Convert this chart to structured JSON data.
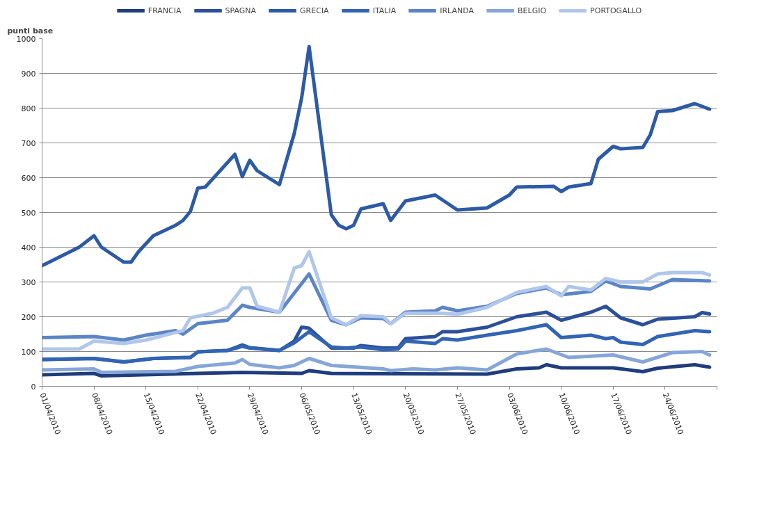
{
  "chart_data": {
    "type": "line",
    "ylabel": "punti base",
    "xlim": [
      "2010-04-01",
      "2010-07-01"
    ],
    "xticks": [
      {
        "value": "2010-04-01",
        "label": "01/04/2010"
      },
      {
        "value": "2010-04-08",
        "label": "08/04/2010"
      },
      {
        "value": "2010-04-15",
        "label": "15/04/2010"
      },
      {
        "value": "2010-04-22",
        "label": "22/04/2010"
      },
      {
        "value": "2010-04-29",
        "label": "29/04/2010"
      },
      {
        "value": "2010-05-06",
        "label": "06/05/2010"
      },
      {
        "value": "2010-05-13",
        "label": "13/05/2010"
      },
      {
        "value": "2010-05-20",
        "label": "20/05/2010"
      },
      {
        "value": "2010-05-27",
        "label": "27/05/2010"
      },
      {
        "value": "2010-06-03",
        "label": "03/06/2010"
      },
      {
        "value": "2010-06-10",
        "label": "10/06/2010"
      },
      {
        "value": "2010-06-17",
        "label": "17/06/2010"
      },
      {
        "value": "2010-06-24",
        "label": "24/06/2010"
      },
      {
        "value": "2010-07-01",
        "label": null
      }
    ],
    "ylim": [
      0,
      1000
    ],
    "yticks": [
      0,
      100,
      200,
      300,
      400,
      500,
      600,
      700,
      800,
      900,
      1000
    ],
    "grid": "y",
    "legend": "top",
    "marker": "none",
    "line_style": "solid",
    "series": [
      {
        "name": "FRANCIA",
        "color": "#1f3c7c",
        "x": [
          "2010-04-01",
          "2010-04-08",
          "2010-04-09",
          "2010-04-22",
          "2010-04-28",
          "2010-05-06",
          "2010-05-07",
          "2010-05-10",
          "2010-05-31",
          "2010-06-04",
          "2010-06-07",
          "2010-06-08",
          "2010-06-10",
          "2010-06-17",
          "2010-06-21",
          "2010-06-23",
          "2010-06-28",
          "2010-06-30"
        ],
        "values": [
          33,
          37,
          30,
          37,
          40,
          37,
          45,
          37,
          35,
          50,
          53,
          62,
          53,
          53,
          42,
          52,
          62,
          55
        ]
      },
      {
        "name": "SPAGNA",
        "color": "#2c4f9a",
        "x": [
          "2010-04-01",
          "2010-04-08",
          "2010-04-12",
          "2010-04-16",
          "2010-04-21",
          "2010-04-22",
          "2010-04-26",
          "2010-04-28",
          "2010-04-29",
          "2010-05-03",
          "2010-05-05",
          "2010-05-06",
          "2010-05-07",
          "2010-05-10",
          "2010-05-13",
          "2010-05-14",
          "2010-05-17",
          "2010-05-19",
          "2010-05-20",
          "2010-05-24",
          "2010-05-25",
          "2010-05-27",
          "2010-05-31",
          "2010-06-04",
          "2010-06-08",
          "2010-06-10",
          "2010-06-14",
          "2010-06-16",
          "2010-06-18",
          "2010-06-21",
          "2010-06-23",
          "2010-06-28",
          "2010-06-29",
          "2010-06-30"
        ],
        "values": [
          77,
          80,
          70,
          80,
          83,
          99,
          103,
          119,
          111,
          103,
          130,
          170,
          167,
          110,
          110,
          117,
          110,
          110,
          137,
          143,
          157,
          157,
          170,
          200,
          213,
          190,
          213,
          230,
          197,
          177,
          193,
          200,
          212,
          208
        ]
      },
      {
        "name": "GRECIA",
        "color": "#2d5aa5",
        "x": [
          "2010-04-01",
          "2010-04-06",
          "2010-04-08",
          "2010-04-09",
          "2010-04-12",
          "2010-04-13",
          "2010-04-14",
          "2010-04-16",
          "2010-04-19",
          "2010-04-20",
          "2010-04-21",
          "2010-04-22",
          "2010-04-23",
          "2010-04-27",
          "2010-04-28",
          "2010-04-29",
          "2010-04-30",
          "2010-05-03",
          "2010-05-05",
          "2010-05-06",
          "2010-05-07",
          "2010-05-10",
          "2010-05-11",
          "2010-05-12",
          "2010-05-13",
          "2010-05-14",
          "2010-05-17",
          "2010-05-18",
          "2010-05-20",
          "2010-05-24",
          "2010-05-27",
          "2010-05-31",
          "2010-06-03",
          "2010-06-04",
          "2010-06-09",
          "2010-06-10",
          "2010-06-11",
          "2010-06-14",
          "2010-06-15",
          "2010-06-17",
          "2010-06-18",
          "2010-06-21",
          "2010-06-22",
          "2010-06-23",
          "2010-06-25",
          "2010-06-28",
          "2010-06-30"
        ],
        "values": [
          347,
          400,
          433,
          400,
          357,
          357,
          387,
          433,
          463,
          477,
          503,
          570,
          573,
          667,
          603,
          650,
          620,
          580,
          727,
          830,
          977,
          493,
          463,
          453,
          463,
          510,
          525,
          477,
          533,
          550,
          507,
          513,
          550,
          573,
          575,
          560,
          573,
          583,
          653,
          690,
          683,
          687,
          723,
          790,
          793,
          813,
          797
        ]
      },
      {
        "name": "ITALIA",
        "color": "#3264b4",
        "x": [
          "2010-04-01",
          "2010-04-08",
          "2010-04-12",
          "2010-04-16",
          "2010-04-21",
          "2010-04-22",
          "2010-04-26",
          "2010-04-28",
          "2010-04-29",
          "2010-05-03",
          "2010-05-05",
          "2010-05-07",
          "2010-05-10",
          "2010-05-12",
          "2010-05-14",
          "2010-05-17",
          "2010-05-19",
          "2010-05-20",
          "2010-05-24",
          "2010-05-25",
          "2010-05-27",
          "2010-05-31",
          "2010-06-04",
          "2010-06-08",
          "2010-06-10",
          "2010-06-14",
          "2010-06-16",
          "2010-06-17",
          "2010-06-18",
          "2010-06-21",
          "2010-06-23",
          "2010-06-28",
          "2010-06-30"
        ],
        "values": [
          77,
          80,
          70,
          80,
          83,
          99,
          103,
          115,
          110,
          103,
          125,
          157,
          113,
          110,
          113,
          105,
          107,
          130,
          123,
          137,
          133,
          147,
          160,
          177,
          140,
          147,
          137,
          140,
          127,
          120,
          143,
          160,
          157
        ]
      },
      {
        "name": "IRLANDA",
        "color": "#5b85c6",
        "x": [
          "2010-04-01",
          "2010-04-08",
          "2010-04-12",
          "2010-04-15",
          "2010-04-19",
          "2010-04-20",
          "2010-04-22",
          "2010-04-26",
          "2010-04-28",
          "2010-04-29",
          "2010-05-03",
          "2010-05-07",
          "2010-05-10",
          "2010-05-12",
          "2010-05-14",
          "2010-05-17",
          "2010-05-18",
          "2010-05-20",
          "2010-05-24",
          "2010-05-25",
          "2010-05-27",
          "2010-05-31",
          "2010-06-04",
          "2010-06-08",
          "2010-06-10",
          "2010-06-14",
          "2010-06-16",
          "2010-06-18",
          "2010-06-22",
          "2010-06-25",
          "2010-06-30"
        ],
        "values": [
          140,
          143,
          133,
          147,
          160,
          150,
          180,
          190,
          233,
          227,
          213,
          323,
          190,
          177,
          197,
          195,
          180,
          213,
          217,
          227,
          217,
          230,
          267,
          283,
          263,
          273,
          303,
          287,
          280,
          307,
          303
        ]
      },
      {
        "name": "BELGIO",
        "color": "#86a6d8",
        "x": [
          "2010-04-01",
          "2010-04-08",
          "2010-04-09",
          "2010-04-19",
          "2010-04-22",
          "2010-04-27",
          "2010-04-28",
          "2010-04-29",
          "2010-05-03",
          "2010-05-05",
          "2010-05-07",
          "2010-05-10",
          "2010-05-17",
          "2010-05-18",
          "2010-05-21",
          "2010-05-24",
          "2010-05-27",
          "2010-05-31",
          "2010-06-04",
          "2010-06-08",
          "2010-06-11",
          "2010-06-17",
          "2010-06-21",
          "2010-06-25",
          "2010-06-29",
          "2010-06-30"
        ],
        "values": [
          47,
          50,
          40,
          43,
          57,
          67,
          77,
          63,
          53,
          60,
          80,
          60,
          50,
          45,
          50,
          47,
          53,
          47,
          93,
          107,
          83,
          90,
          70,
          97,
          100,
          90
        ]
      },
      {
        "name": "PORTOGALLO",
        "color": "#b0c6ea",
        "x": [
          "2010-04-01",
          "2010-04-06",
          "2010-04-08",
          "2010-04-12",
          "2010-04-15",
          "2010-04-20",
          "2010-04-21",
          "2010-04-24",
          "2010-04-26",
          "2010-04-28",
          "2010-04-29",
          "2010-04-30",
          "2010-05-03",
          "2010-05-05",
          "2010-05-06",
          "2010-05-07",
          "2010-05-10",
          "2010-05-12",
          "2010-05-14",
          "2010-05-17",
          "2010-05-18",
          "2010-05-20",
          "2010-05-25",
          "2010-05-27",
          "2010-05-31",
          "2010-06-04",
          "2010-06-08",
          "2010-06-10",
          "2010-06-11",
          "2010-06-14",
          "2010-06-16",
          "2010-06-18",
          "2010-06-21",
          "2010-06-23",
          "2010-06-25",
          "2010-06-29",
          "2010-06-30"
        ],
        "values": [
          107,
          107,
          130,
          123,
          133,
          160,
          197,
          210,
          227,
          283,
          283,
          230,
          213,
          340,
          347,
          387,
          197,
          177,
          203,
          200,
          180,
          210,
          210,
          207,
          227,
          270,
          287,
          260,
          287,
          277,
          310,
          300,
          300,
          323,
          327,
          327,
          320
        ]
      }
    ]
  }
}
